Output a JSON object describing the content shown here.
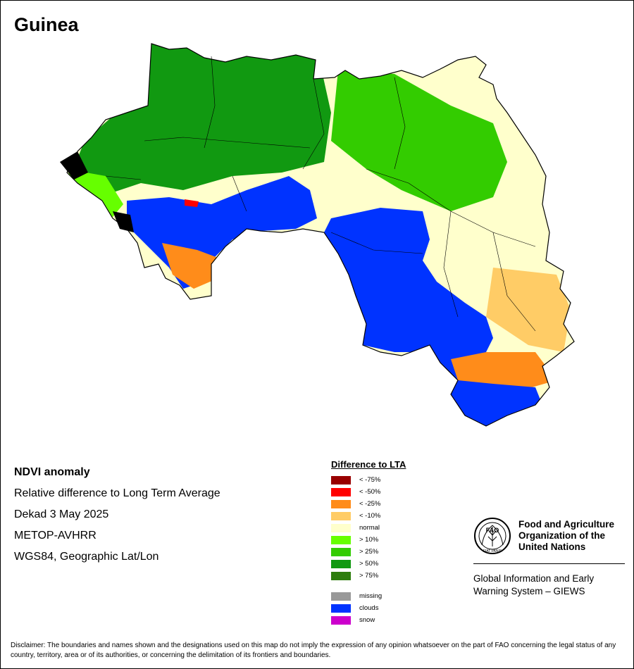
{
  "title": "Guinea",
  "map": {
    "colors": {
      "normal": "#FFFFCC",
      "gt10": "#66FF00",
      "gt25": "#33CC00",
      "gt50": "#119911",
      "clouds": "#0033FF",
      "lt10": "#FFCC66",
      "lt25": "#FF8C1A",
      "lt50": "#FF0000",
      "boundary": "#000000"
    }
  },
  "info": {
    "product": "NDVI anomaly",
    "description": "Relative difference to Long Term Average",
    "period": "Dekad 3 May 2025",
    "sensor": "METOP-AVHRR",
    "projection": "WGS84, Geographic Lat/Lon"
  },
  "legend": {
    "title": "Difference to LTA",
    "items": [
      {
        "label": "< -75%",
        "color": "#990000"
      },
      {
        "label": "< -50%",
        "color": "#FF0000"
      },
      {
        "label": "< -25%",
        "color": "#FF8C1A"
      },
      {
        "label": "< -10%",
        "color": "#FFCC66"
      },
      {
        "label": "normal",
        "color": "#FFFFCC"
      },
      {
        "label": "> 10%",
        "color": "#66FF00"
      },
      {
        "label": "> 25%",
        "color": "#33CC00"
      },
      {
        "label": "> 50%",
        "color": "#119911"
      },
      {
        "label": "> 75%",
        "color": "#2E7D0E"
      },
      {
        "label": "missing",
        "color": "#999999"
      },
      {
        "label": "clouds",
        "color": "#0033FF"
      },
      {
        "label": "snow",
        "color": "#CC00CC"
      }
    ]
  },
  "fao": {
    "logo_text": "FAO",
    "logo_motto": "FIAT PANIS",
    "name_line1": "Food and Agriculture",
    "name_line2": "Organization of the",
    "name_line3": "United Nations",
    "giews_line1": "Global Information and Early",
    "giews_line2": "Warning System – GIEWS"
  },
  "disclaimer": "Disclaimer: The boundaries and names shown and the designations used on this map do not imply the expression of any opinion whatsoever on the part of FAO concerning the legal status of any country, territory, area or of its authorities, or concerning the delimitation of its frontiers and boundaries."
}
